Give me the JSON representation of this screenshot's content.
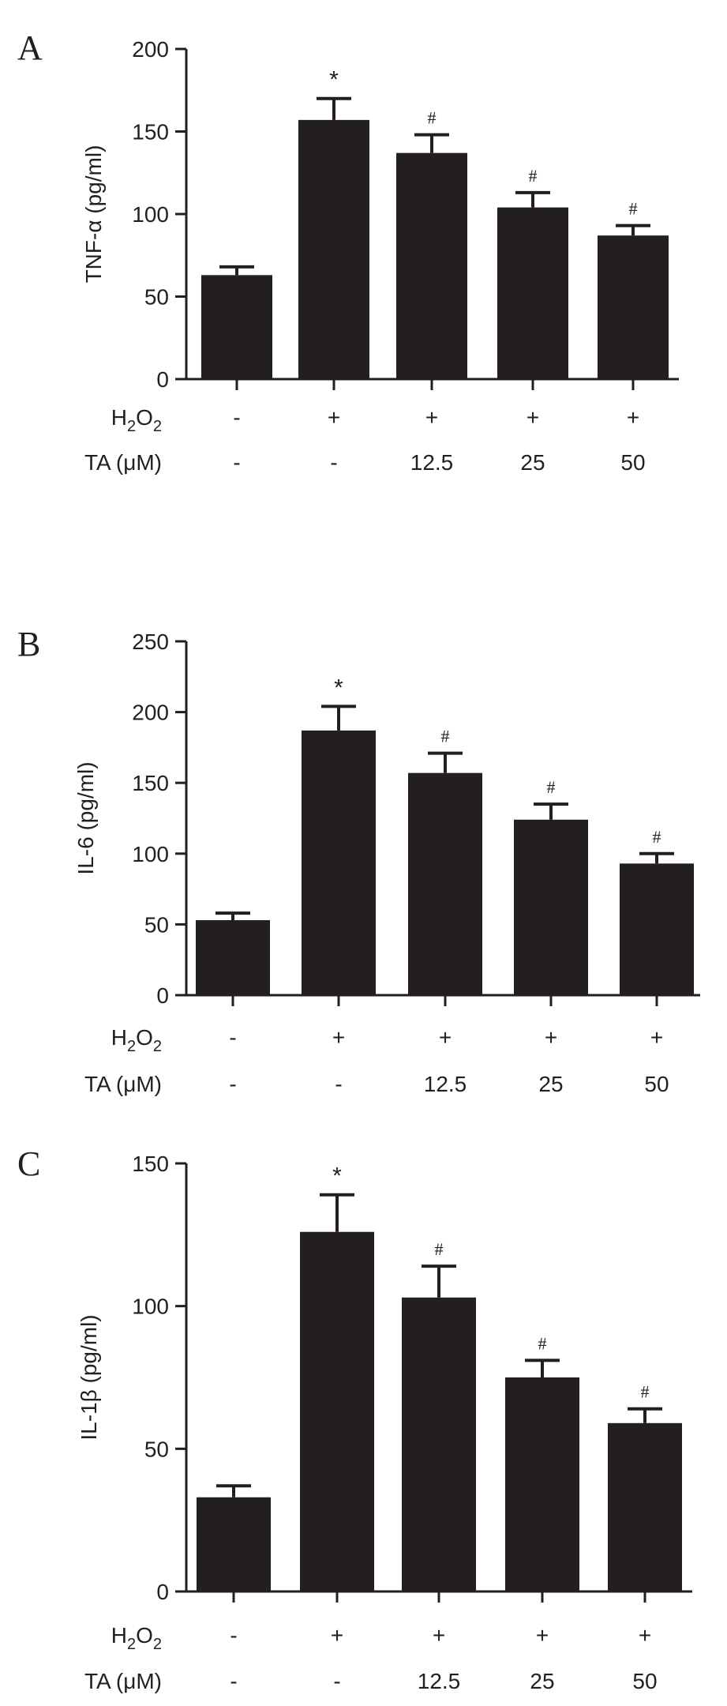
{
  "chart_data": [
    {
      "type": "bar",
      "panel_letter": "A",
      "ylabel": "TNF-α (pg/ml)",
      "ylim": [
        0,
        200
      ],
      "yticks": [
        "0",
        "50",
        "100",
        "150",
        "200"
      ],
      "values": [
        63,
        157,
        137,
        104,
        87
      ],
      "errors": [
        5,
        13,
        11,
        9,
        6
      ],
      "significance": [
        "",
        "*",
        "#",
        "#",
        "#"
      ],
      "row_labels": {
        "h2o2_main": "H",
        "h2o2_sub1": "2",
        "h2o2_mid": "O",
        "h2o2_sub2": "2",
        "ta": "TA (μM)"
      },
      "h2o2": [
        "-",
        "+",
        "+",
        "+",
        "+"
      ],
      "ta": [
        "-",
        "-",
        "12.5",
        "25",
        "50"
      ],
      "grid": false,
      "legend": "none"
    },
    {
      "type": "bar",
      "panel_letter": "B",
      "ylabel": "IL-6 (pg/ml)",
      "ylim": [
        0,
        250
      ],
      "yticks": [
        "0",
        "50",
        "100",
        "150",
        "200",
        "250"
      ],
      "values": [
        53,
        187,
        157,
        124,
        93
      ],
      "errors": [
        5,
        17,
        14,
        11,
        7
      ],
      "significance": [
        "",
        "*",
        "#",
        "#",
        "#"
      ],
      "row_labels": {
        "h2o2_main": "H",
        "h2o2_sub1": "2",
        "h2o2_mid": "O",
        "h2o2_sub2": "2",
        "ta": "TA (μM)"
      },
      "h2o2": [
        "-",
        "+",
        "+",
        "+",
        "+"
      ],
      "ta": [
        "-",
        "-",
        "12.5",
        "25",
        "50"
      ],
      "grid": false,
      "legend": "none"
    },
    {
      "type": "bar",
      "panel_letter": "C",
      "ylabel": "IL-1β (pg/ml)",
      "ylim": [
        0,
        150
      ],
      "yticks": [
        "0",
        "50",
        "100",
        "150"
      ],
      "values": [
        33,
        126,
        103,
        75,
        59
      ],
      "errors": [
        4,
        13,
        11,
        6,
        5
      ],
      "significance": [
        "",
        "*",
        "#",
        "#",
        "#"
      ],
      "row_labels": {
        "h2o2_main": "H",
        "h2o2_sub1": "2",
        "h2o2_mid": "O",
        "h2o2_sub2": "2",
        "ta": "TA (μM)"
      },
      "h2o2": [
        "-",
        "+",
        "+",
        "+",
        "+"
      ],
      "ta": [
        "-",
        "-",
        "12.5",
        "25",
        "50"
      ],
      "grid": false,
      "legend": "none"
    }
  ],
  "colors": {
    "bar": "#231f20",
    "axis": "#231f20",
    "text": "#231f20"
  }
}
